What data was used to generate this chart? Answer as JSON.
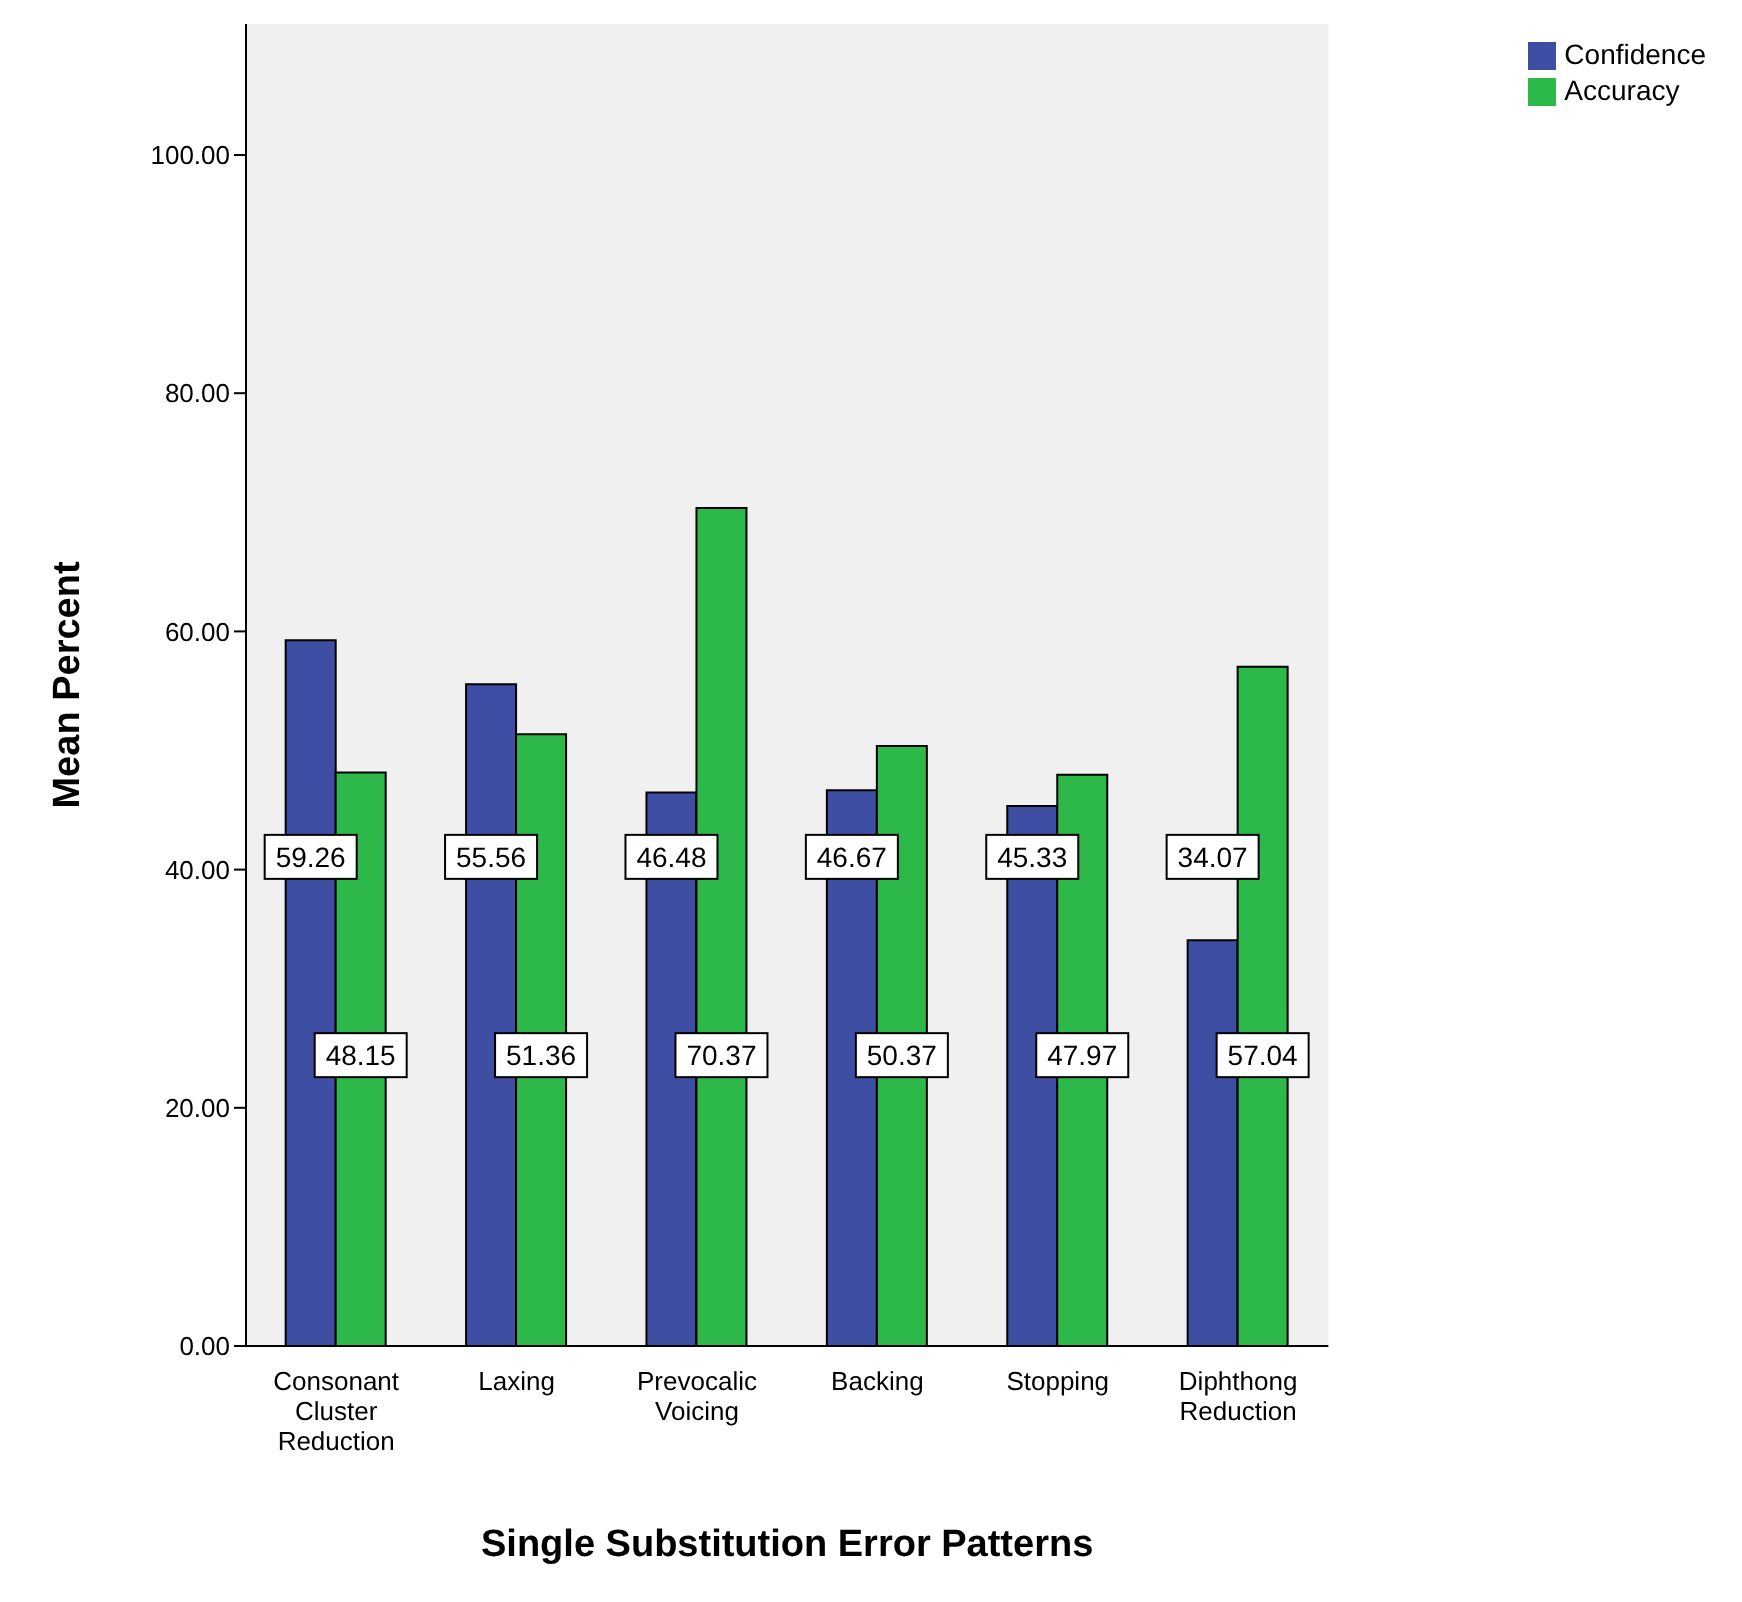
{
  "chart_data": {
    "type": "bar",
    "xlabel": "Single Substitution Error Patterns",
    "ylabel": "Mean Percent",
    "categories": [
      "Consonant Cluster Reduction",
      "Laxing",
      "Prevocalic Voicing",
      "Backing",
      "Stopping",
      "Diphthong Reduction"
    ],
    "series": [
      {
        "name": "Confidence",
        "color": "#3e4fa3",
        "values": [
          59.26,
          55.56,
          46.48,
          46.67,
          45.33,
          34.07
        ]
      },
      {
        "name": "Accuracy",
        "color": "#2db84a",
        "values": [
          48.15,
          51.36,
          70.37,
          50.37,
          47.97,
          57.04
        ]
      }
    ],
    "ylim": [
      0,
      111
    ],
    "yticks": [
      {
        "value": 0,
        "label": "0.00"
      },
      {
        "value": 20,
        "label": "20.00"
      },
      {
        "value": 40,
        "label": "40.00"
      },
      {
        "value": 60,
        "label": "60.00"
      },
      {
        "value": 80,
        "label": "80.00"
      },
      {
        "value": 100,
        "label": "100.00"
      }
    ],
    "data_labels": true,
    "legend": "top right"
  }
}
